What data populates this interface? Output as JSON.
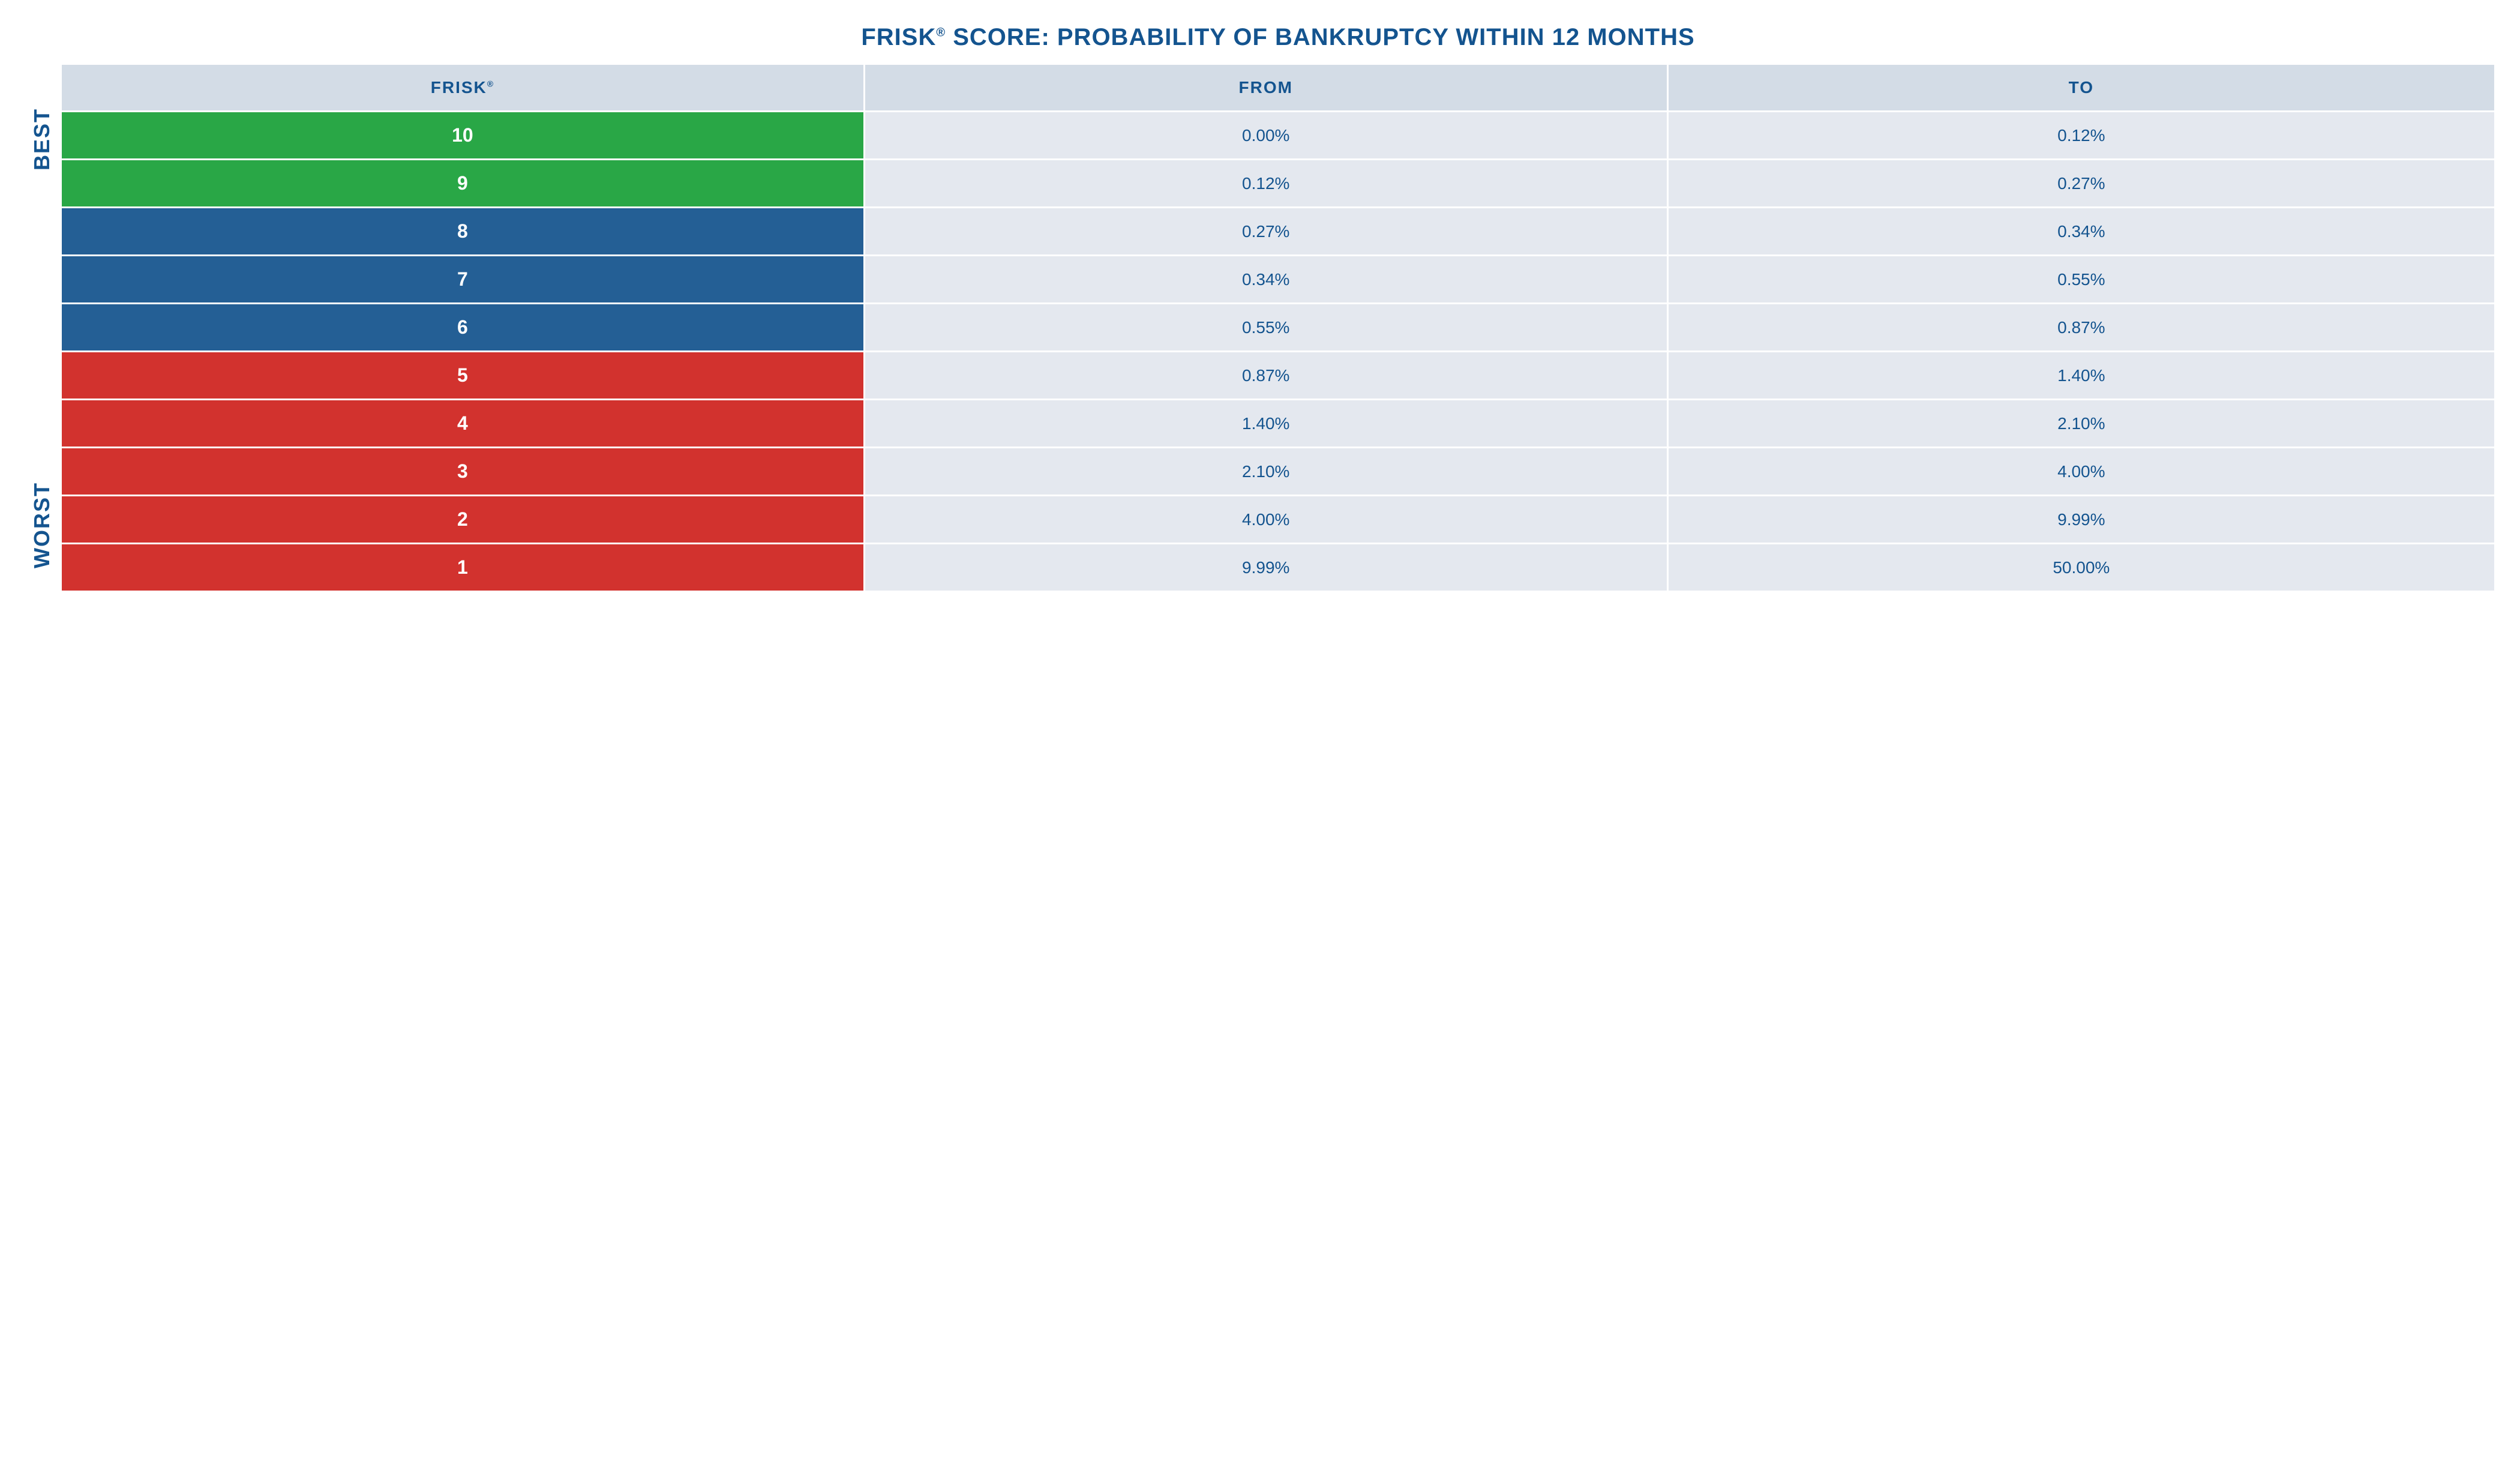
{
  "title_prefix": "FRISK",
  "title_suffix": " SCORE: PROBABILITY OF BANKRUPTCY WITHIN 12 MONTHS",
  "registered_mark": "®",
  "side_labels": {
    "best": "BEST",
    "worst": "WORST"
  },
  "columns": {
    "score": "FRISK",
    "from": "FROM",
    "to": "TO"
  },
  "colors": {
    "green": "#29a746",
    "blue": "#245f95",
    "red": "#d2322e",
    "header_bg": "#d3dce6",
    "cell_bg": "#e4e8ef",
    "text_primary": "#14548f",
    "white": "#ffffff"
  },
  "rows": [
    {
      "score": "10",
      "from": "0.00%",
      "to": "0.12%",
      "color": "green"
    },
    {
      "score": "9",
      "from": "0.12%",
      "to": "0.27%",
      "color": "green"
    },
    {
      "score": "8",
      "from": "0.27%",
      "to": "0.34%",
      "color": "blue"
    },
    {
      "score": "7",
      "from": "0.34%",
      "to": "0.55%",
      "color": "blue"
    },
    {
      "score": "6",
      "from": "0.55%",
      "to": "0.87%",
      "color": "blue"
    },
    {
      "score": "5",
      "from": "0.87%",
      "to": "1.40%",
      "color": "red"
    },
    {
      "score": "4",
      "from": "1.40%",
      "to": "2.10%",
      "color": "red"
    },
    {
      "score": "3",
      "from": "2.10%",
      "to": "4.00%",
      "color": "red"
    },
    {
      "score": "2",
      "from": "4.00%",
      "to": "9.99%",
      "color": "red"
    },
    {
      "score": "1",
      "from": "9.99%",
      "to": "50.00%",
      "color": "red"
    }
  ]
}
